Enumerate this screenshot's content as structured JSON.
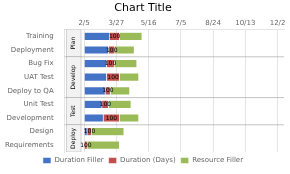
{
  "chart_data": {
    "type": "bar",
    "orientation": "horizontal",
    "stacked": true,
    "title": "Chart Title",
    "categories": [
      "Requirements",
      "Design",
      "Development",
      "Unit Test",
      "Deploy to QA",
      "UAT Test",
      "Bug Fix",
      "Deployment",
      "Training"
    ],
    "series": [
      {
        "name": "Duration Filler",
        "color": "#4472C4",
        "values": [
          0,
          5,
          30,
          28,
          33,
          35,
          35,
          38,
          40
        ]
      },
      {
        "name": "Duration (Days)",
        "color": "#C0504D",
        "values": [
          5,
          7,
          25,
          10,
          8,
          20,
          12,
          10,
          15
        ]
      },
      {
        "name": "Resource Filler",
        "color": "#9BBB59",
        "values": [
          50,
          50,
          30,
          35,
          30,
          30,
          35,
          30,
          35
        ]
      }
    ],
    "annotations": [
      {
        "text": "100",
        "series": "Duration (Days)"
      }
    ],
    "groups": [
      {
        "label": "Plan",
        "categories": [
          "Deployment",
          "Training"
        ]
      },
      {
        "label": "Develop",
        "categories": [
          "Deploy to QA",
          "UAT Test",
          "Bug Fix"
        ]
      },
      {
        "label": "Test",
        "categories": [
          "Development",
          "Unit Test"
        ]
      },
      {
        "label": "Deploy",
        "categories": [
          "Requirements",
          "Design"
        ]
      }
    ],
    "xlim": [
      -30,
      310
    ],
    "xticks": [
      {
        "value": 0,
        "label": "2/5"
      },
      {
        "value": 50,
        "label": "3/27"
      },
      {
        "value": 100,
        "label": "5/16"
      },
      {
        "value": 150,
        "label": "7/5"
      },
      {
        "value": 200,
        "label": "8/24"
      },
      {
        "value": 250,
        "label": "10/13"
      },
      {
        "value": 300,
        "label": "12/2"
      }
    ],
    "grid": true,
    "legend": "bottom"
  }
}
